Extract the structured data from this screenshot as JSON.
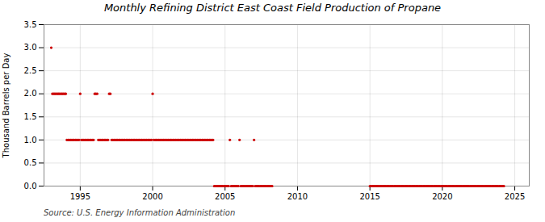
{
  "chart_data": {
    "type": "scatter",
    "title": "Monthly Refining District East Coast Field Production of Propane",
    "y_label": "Thousand Barrels per Day",
    "annotations": [
      "Source: U.S. Energy Information Administration"
    ],
    "color": "#cc0000",
    "grid": true,
    "xlim": [
      1992.5,
      2026
    ],
    "xticks": [
      1995,
      2000,
      2005,
      2010,
      2015,
      2020,
      2025
    ],
    "ylim": [
      0,
      3.5
    ],
    "yticks": [
      {
        "value": 0.0,
        "label": "0.0"
      },
      {
        "value": 0.5,
        "label": "0.5"
      },
      {
        "value": 1.0,
        "label": "1.0"
      },
      {
        "value": 1.5,
        "label": "1.5"
      },
      {
        "value": 2.0,
        "label": "2.0"
      },
      {
        "value": 2.5,
        "label": "2.5"
      },
      {
        "value": 3.0,
        "label": "3.0"
      },
      {
        "value": 3.5,
        "label": "3.5"
      }
    ],
    "x": [
      1993.0,
      1993.08,
      1993.17,
      1993.25,
      1993.33,
      1993.42,
      1993.5,
      1993.58,
      1993.67,
      1993.75,
      1993.83,
      1993.92,
      1994.0,
      1994.08,
      1994.17,
      1994.25,
      1994.33,
      1994.42,
      1994.5,
      1994.58,
      1994.67,
      1994.75,
      1994.83,
      1994.92,
      1995.0,
      1995.08,
      1995.17,
      1995.25,
      1995.33,
      1995.42,
      1995.5,
      1995.58,
      1995.67,
      1995.75,
      1995.83,
      1995.92,
      1996.0,
      1996.08,
      1996.17,
      1996.25,
      1996.33,
      1996.42,
      1996.5,
      1996.58,
      1996.67,
      1996.75,
      1996.83,
      1996.92,
      1997.0,
      1997.08,
      1997.17,
      1997.25,
      1997.33,
      1997.42,
      1997.5,
      1997.58,
      1997.67,
      1997.75,
      1997.83,
      1997.92,
      1998.0,
      1998.08,
      1998.17,
      1998.25,
      1998.33,
      1998.42,
      1998.5,
      1998.58,
      1998.67,
      1998.75,
      1998.83,
      1998.92,
      1999.0,
      1999.08,
      1999.17,
      1999.25,
      1999.33,
      1999.42,
      1999.5,
      1999.58,
      1999.67,
      1999.75,
      1999.83,
      1999.92,
      2000.0,
      2000.08,
      2000.17,
      2000.25,
      2000.33,
      2000.42,
      2000.5,
      2000.58,
      2000.67,
      2000.75,
      2000.83,
      2000.92,
      2001.0,
      2001.08,
      2001.17,
      2001.25,
      2001.33,
      2001.42,
      2001.5,
      2001.58,
      2001.67,
      2001.75,
      2001.83,
      2001.92,
      2002.0,
      2002.08,
      2002.17,
      2002.25,
      2002.33,
      2002.42,
      2002.5,
      2002.58,
      2002.67,
      2002.75,
      2002.83,
      2002.92,
      2003.0,
      2003.08,
      2003.17,
      2003.25,
      2003.33,
      2003.42,
      2003.5,
      2003.58,
      2003.67,
      2003.75,
      2003.83,
      2003.92,
      2004.0,
      2004.08,
      2004.17,
      2004.25,
      2004.33,
      2004.42,
      2004.5,
      2004.58,
      2004.67,
      2004.75,
      2004.83,
      2004.92,
      2005.0,
      2005.08,
      2005.17,
      2005.25,
      2005.33,
      2005.42,
      2005.5,
      2005.58,
      2005.67,
      2005.75,
      2005.83,
      2005.92,
      2006.0,
      2006.08,
      2006.17,
      2006.25,
      2006.33,
      2006.42,
      2006.5,
      2006.58,
      2006.67,
      2006.75,
      2006.83,
      2006.92,
      2007.0,
      2007.08,
      2007.17,
      2007.25,
      2007.33,
      2007.42,
      2007.5,
      2007.58,
      2007.67,
      2007.75,
      2007.83,
      2007.92,
      2008.0,
      2008.08,
      2008.17,
      2008.25,
      2015.0,
      2015.08,
      2015.17,
      2015.25,
      2015.33,
      2015.42,
      2015.5,
      2015.58,
      2015.67,
      2015.75,
      2015.83,
      2015.92,
      2016.0,
      2016.08,
      2016.17,
      2016.25,
      2016.33,
      2016.42,
      2016.5,
      2016.58,
      2016.67,
      2016.75,
      2016.83,
      2016.92,
      2017.0,
      2017.08,
      2017.17,
      2017.25,
      2017.33,
      2017.42,
      2017.5,
      2017.58,
      2017.67,
      2017.75,
      2017.83,
      2017.92,
      2018.0,
      2018.08,
      2018.17,
      2018.25,
      2018.33,
      2018.42,
      2018.5,
      2018.58,
      2018.67,
      2018.75,
      2018.83,
      2018.92,
      2019.0,
      2019.08,
      2019.17,
      2019.25,
      2019.33,
      2019.42,
      2019.5,
      2019.58,
      2019.67,
      2019.75,
      2019.83,
      2019.92,
      2020.0,
      2020.08,
      2020.17,
      2020.25,
      2020.33,
      2020.42,
      2020.5,
      2020.58,
      2020.67,
      2020.75,
      2020.83,
      2020.92,
      2021.0,
      2021.08,
      2021.17,
      2021.25,
      2021.33,
      2021.42,
      2021.5,
      2021.58,
      2021.67,
      2021.75,
      2021.83,
      2021.92,
      2022.0,
      2022.08,
      2022.17,
      2022.25,
      2022.33,
      2022.42,
      2022.5,
      2022.58,
      2022.67,
      2022.75,
      2022.83,
      2022.92,
      2023.0,
      2023.08,
      2023.17,
      2023.25,
      2023.33,
      2023.42,
      2023.5,
      2023.58,
      2023.67,
      2023.75,
      2023.83,
      2023.92,
      2024.0,
      2024.08,
      2024.17,
      2024.25
    ],
    "values": [
      3.0,
      2.0,
      2.0,
      2.0,
      2.0,
      2.0,
      2.0,
      2.0,
      2.0,
      2.0,
      2.0,
      2.0,
      2.0,
      1.0,
      1.0,
      1.0,
      1.0,
      1.0,
      1.0,
      1.0,
      1.0,
      1.0,
      1.0,
      1.0,
      2.0,
      1.0,
      1.0,
      1.0,
      1.0,
      1.0,
      1.0,
      1.0,
      1.0,
      1.0,
      1.0,
      1.0,
      2.0,
      2.0,
      2.0,
      1.0,
      1.0,
      1.0,
      1.0,
      1.0,
      1.0,
      1.0,
      1.0,
      1.0,
      2.0,
      2.0,
      1.0,
      1.0,
      1.0,
      1.0,
      1.0,
      1.0,
      1.0,
      1.0,
      1.0,
      1.0,
      1.0,
      1.0,
      1.0,
      1.0,
      1.0,
      1.0,
      1.0,
      1.0,
      1.0,
      1.0,
      1.0,
      1.0,
      1.0,
      1.0,
      1.0,
      1.0,
      1.0,
      1.0,
      1.0,
      1.0,
      1.0,
      1.0,
      1.0,
      1.0,
      2.0,
      1.0,
      1.0,
      1.0,
      1.0,
      1.0,
      1.0,
      1.0,
      1.0,
      1.0,
      1.0,
      1.0,
      1.0,
      1.0,
      1.0,
      1.0,
      1.0,
      1.0,
      1.0,
      1.0,
      1.0,
      1.0,
      1.0,
      1.0,
      1.0,
      1.0,
      1.0,
      1.0,
      1.0,
      1.0,
      1.0,
      1.0,
      1.0,
      1.0,
      1.0,
      1.0,
      1.0,
      1.0,
      1.0,
      1.0,
      1.0,
      1.0,
      1.0,
      1.0,
      1.0,
      1.0,
      1.0,
      1.0,
      1.0,
      1.0,
      1.0,
      0.0,
      0.0,
      0.0,
      0.0,
      0.0,
      0.0,
      0.0,
      0.0,
      0.0,
      0.0,
      0.0,
      0.0,
      0.0,
      1.0,
      0.0,
      0.0,
      0.0,
      0.0,
      0.0,
      0.0,
      0.0,
      1.0,
      0.0,
      0.0,
      0.0,
      0.0,
      0.0,
      0.0,
      0.0,
      0.0,
      0.0,
      0.0,
      0.0,
      1.0,
      0.0,
      0.0,
      0.0,
      0.0,
      0.0,
      0.0,
      0.0,
      0.0,
      0.0,
      0.0,
      0.0,
      0.0,
      0.0,
      0.0,
      0.0,
      0.0,
      0.0,
      0.0,
      0.0,
      0.0,
      0.0,
      0.0,
      0.0,
      0.0,
      0.0,
      0.0,
      0.0,
      0.0,
      0.0,
      0.0,
      0.0,
      0.0,
      0.0,
      0.0,
      0.0,
      0.0,
      0.0,
      0.0,
      0.0,
      0.0,
      0.0,
      0.0,
      0.0,
      0.0,
      0.0,
      0.0,
      0.0,
      0.0,
      0.0,
      0.0,
      0.0,
      0.0,
      0.0,
      0.0,
      0.0,
      0.0,
      0.0,
      0.0,
      0.0,
      0.0,
      0.0,
      0.0,
      0.0,
      0.0,
      0.0,
      0.0,
      0.0,
      0.0,
      0.0,
      0.0,
      0.0,
      0.0,
      0.0,
      0.0,
      0.0,
      0.0,
      0.0,
      0.0,
      0.0,
      0.0,
      0.0,
      0.0,
      0.0,
      0.0,
      0.0,
      0.0,
      0.0,
      0.0,
      0.0,
      0.0,
      0.0,
      0.0,
      0.0,
      0.0,
      0.0,
      0.0,
      0.0,
      0.0,
      0.0,
      0.0,
      0.0,
      0.0,
      0.0,
      0.0,
      0.0,
      0.0,
      0.0,
      0.0,
      0.0,
      0.0,
      0.0,
      0.0,
      0.0,
      0.0,
      0.0,
      0.0,
      0.0,
      0.0,
      0.0,
      0.0,
      0.0,
      0.0,
      0.0,
      0.0,
      0.0,
      0.0,
      0.0
    ]
  }
}
